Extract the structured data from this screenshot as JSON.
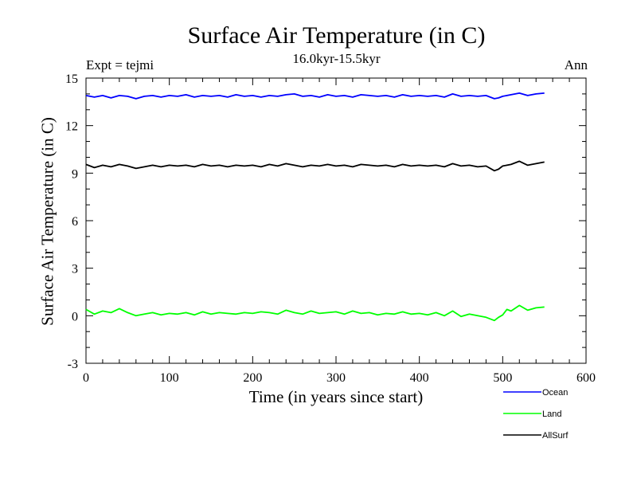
{
  "chart_data": {
    "type": "line",
    "title": "Surface Air Temperature (in C)",
    "subtitle": "16.0kyr-15.5kyr",
    "left_note": "Expt = tejmi",
    "right_note": "Ann",
    "xlabel": "Time (in years since start)",
    "ylabel": "Surface Air Temperature (in C)",
    "xlim": [
      0,
      600
    ],
    "ylim": [
      -3,
      15
    ],
    "x_ticks": [
      0,
      100,
      200,
      300,
      400,
      500,
      600
    ],
    "y_ticks": [
      -3,
      0,
      3,
      6,
      9,
      12,
      15
    ],
    "grid": false,
    "legend_position": "bottom-right outside",
    "series": [
      {
        "name": "Ocean",
        "color": "#0000ff",
        "x": [
          0,
          10,
          20,
          30,
          40,
          50,
          60,
          70,
          80,
          90,
          100,
          110,
          120,
          130,
          140,
          150,
          160,
          170,
          180,
          190,
          200,
          210,
          220,
          230,
          240,
          250,
          260,
          270,
          280,
          290,
          300,
          310,
          320,
          330,
          340,
          350,
          360,
          370,
          380,
          390,
          400,
          410,
          420,
          430,
          440,
          450,
          460,
          470,
          480,
          490,
          495,
          500,
          510,
          520,
          530,
          540,
          550
        ],
        "values": [
          13.9,
          13.8,
          13.9,
          13.75,
          13.9,
          13.85,
          13.7,
          13.85,
          13.9,
          13.8,
          13.9,
          13.85,
          13.95,
          13.8,
          13.9,
          13.85,
          13.9,
          13.8,
          13.95,
          13.85,
          13.9,
          13.8,
          13.9,
          13.85,
          13.95,
          14.0,
          13.85,
          13.9,
          13.8,
          13.95,
          13.85,
          13.9,
          13.8,
          13.95,
          13.9,
          13.85,
          13.9,
          13.8,
          13.95,
          13.85,
          13.9,
          13.85,
          13.9,
          13.8,
          14.0,
          13.85,
          13.9,
          13.85,
          13.9,
          13.7,
          13.75,
          13.85,
          13.95,
          14.05,
          13.9,
          14.0,
          14.05
        ]
      },
      {
        "name": "Land",
        "color": "#00ff00",
        "x": [
          0,
          10,
          20,
          30,
          40,
          50,
          60,
          70,
          80,
          90,
          100,
          110,
          120,
          130,
          140,
          150,
          160,
          170,
          180,
          190,
          200,
          210,
          220,
          230,
          240,
          250,
          260,
          270,
          280,
          290,
          300,
          310,
          320,
          330,
          340,
          350,
          360,
          370,
          380,
          390,
          400,
          410,
          420,
          430,
          440,
          450,
          460,
          470,
          480,
          490,
          495,
          500,
          505,
          510,
          520,
          530,
          540,
          550
        ],
        "values": [
          0.4,
          0.1,
          0.3,
          0.2,
          0.45,
          0.2,
          0.0,
          0.1,
          0.2,
          0.05,
          0.15,
          0.1,
          0.2,
          0.05,
          0.25,
          0.1,
          0.2,
          0.15,
          0.1,
          0.2,
          0.15,
          0.25,
          0.2,
          0.1,
          0.35,
          0.2,
          0.1,
          0.3,
          0.15,
          0.2,
          0.25,
          0.1,
          0.3,
          0.15,
          0.2,
          0.05,
          0.15,
          0.1,
          0.25,
          0.1,
          0.15,
          0.05,
          0.2,
          0.0,
          0.3,
          -0.05,
          0.1,
          0.0,
          -0.1,
          -0.3,
          -0.1,
          0.05,
          0.4,
          0.3,
          0.65,
          0.35,
          0.5,
          0.55
        ]
      },
      {
        "name": "AllSurf",
        "color": "#000000",
        "x": [
          0,
          10,
          20,
          30,
          40,
          50,
          60,
          70,
          80,
          90,
          100,
          110,
          120,
          130,
          140,
          150,
          160,
          170,
          180,
          190,
          200,
          210,
          220,
          230,
          240,
          250,
          260,
          270,
          280,
          290,
          300,
          310,
          320,
          330,
          340,
          350,
          360,
          370,
          380,
          390,
          400,
          410,
          420,
          430,
          440,
          450,
          460,
          470,
          480,
          490,
          495,
          500,
          510,
          520,
          530,
          540,
          550
        ],
        "values": [
          9.55,
          9.35,
          9.5,
          9.4,
          9.55,
          9.45,
          9.3,
          9.4,
          9.5,
          9.4,
          9.5,
          9.45,
          9.5,
          9.4,
          9.55,
          9.45,
          9.5,
          9.4,
          9.5,
          9.45,
          9.5,
          9.4,
          9.55,
          9.45,
          9.6,
          9.5,
          9.4,
          9.5,
          9.45,
          9.55,
          9.45,
          9.5,
          9.4,
          9.55,
          9.5,
          9.45,
          9.5,
          9.4,
          9.55,
          9.45,
          9.5,
          9.45,
          9.5,
          9.4,
          9.6,
          9.45,
          9.5,
          9.4,
          9.45,
          9.15,
          9.25,
          9.45,
          9.55,
          9.75,
          9.5,
          9.6,
          9.7
        ]
      }
    ]
  }
}
